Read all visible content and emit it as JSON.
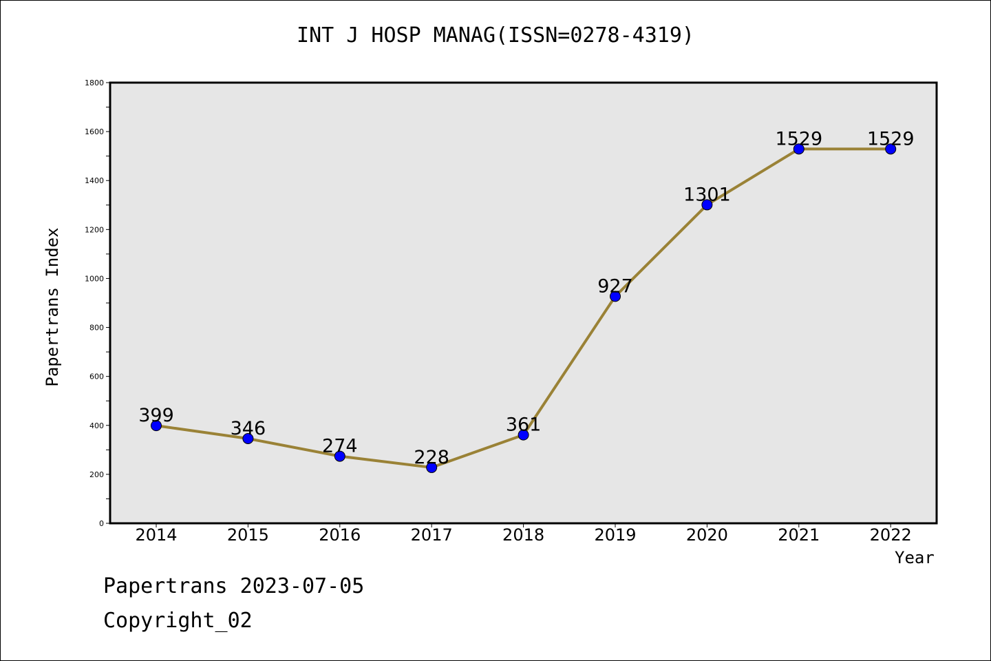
{
  "chart_data": {
    "type": "line",
    "title": "INT J HOSP MANAG(ISSN=0278-4319)",
    "xlabel": "Year",
    "ylabel": "Papertrans Index",
    "categories": [
      "2014",
      "2015",
      "2016",
      "2017",
      "2018",
      "2019",
      "2020",
      "2021",
      "2022"
    ],
    "series": [
      {
        "values": [
          399,
          346,
          274,
          228,
          361,
          927,
          1301,
          1529,
          1529
        ]
      }
    ],
    "data_labels": [
      "399",
      "346",
      "274",
      "228",
      "361",
      "927",
      "1301",
      "1529",
      "1529"
    ],
    "ylim": [
      0,
      1800
    ],
    "y_ticks": [
      "0",
      "200",
      "400",
      "600",
      "800",
      "1000",
      "1200",
      "1400",
      "1600",
      "1800"
    ],
    "grid": false,
    "legend": "none",
    "colors": {
      "line": "#9a8236",
      "marker": "#0000ff",
      "plot_background": "#e6e6e6"
    }
  },
  "footer": {
    "date_text": "Papertrans 2023-07-05",
    "copyright_text": "Copyright_02"
  }
}
